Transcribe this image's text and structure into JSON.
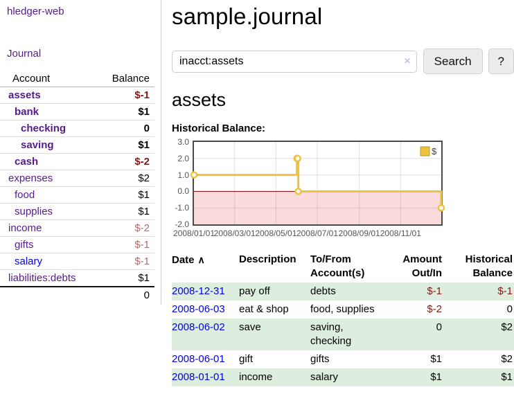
{
  "app": {
    "brand": "hledger-web",
    "nav_journal": "Journal"
  },
  "sidebar": {
    "table_headers": {
      "account": "Account",
      "balance": "Balance"
    },
    "accounts": [
      {
        "name": "assets",
        "indent": 1,
        "bold": true,
        "link_color": "purple",
        "balance": "$-1",
        "balance_style": "neg-strong"
      },
      {
        "name": "bank",
        "indent": 2,
        "bold": true,
        "link_color": "purple",
        "balance": "$1",
        "balance_style": "pos"
      },
      {
        "name": "checking",
        "indent": 3,
        "bold": true,
        "link_color": "purple",
        "balance": "0",
        "balance_style": "pos"
      },
      {
        "name": "saving",
        "indent": 3,
        "bold": true,
        "link_color": "purple",
        "balance": "$1",
        "balance_style": "pos"
      },
      {
        "name": "cash",
        "indent": 2,
        "bold": true,
        "link_color": "purple",
        "balance": "$-2",
        "balance_style": "neg-strong"
      },
      {
        "name": "expenses",
        "indent": 1,
        "bold": false,
        "link_color": "purple",
        "balance": "$2",
        "balance_style": "pos"
      },
      {
        "name": "food",
        "indent": 2,
        "bold": false,
        "link_color": "purple",
        "balance": "$1",
        "balance_style": "pos"
      },
      {
        "name": "supplies",
        "indent": 2,
        "bold": false,
        "link_color": "purple",
        "balance": "$1",
        "balance_style": "pos"
      },
      {
        "name": "income",
        "indent": 1,
        "bold": false,
        "link_color": "purple",
        "balance": "$-2",
        "balance_style": "neg-soft"
      },
      {
        "name": "gifts",
        "indent": 2,
        "bold": false,
        "link_color": "purple",
        "balance": "$-1",
        "balance_style": "neg-soft"
      },
      {
        "name": "salary",
        "indent": 2,
        "bold": false,
        "link_color": "blue",
        "balance": "$-1",
        "balance_style": "neg-soft"
      },
      {
        "name": "liabilities:debts",
        "indent": 1,
        "bold": false,
        "link_color": "purple",
        "balance": "$1",
        "balance_style": "pos"
      }
    ],
    "total": "0"
  },
  "header": {
    "title": "sample.journal"
  },
  "search": {
    "value": "inacct:assets",
    "clear_icon": "×",
    "button_label": "Search",
    "help_label": "?"
  },
  "account_page": {
    "heading": "assets",
    "chart_label": "Historical Balance:"
  },
  "chart_data": {
    "type": "line",
    "step": true,
    "title": "Historical Balance:",
    "series": [
      {
        "name": "$",
        "color": "#edc240",
        "points": [
          {
            "date": "2008-01-01",
            "day": 0,
            "value": 1
          },
          {
            "date": "2008-06-01",
            "day": 152,
            "value": 2
          },
          {
            "date": "2008-06-02",
            "day": 153,
            "value": 2
          },
          {
            "date": "2008-06-03",
            "day": 154,
            "value": 0
          },
          {
            "date": "2008-12-31",
            "day": 365,
            "value": -1
          }
        ]
      }
    ],
    "x_ticks": [
      {
        "label": "2008/01/01",
        "day": 0
      },
      {
        "label": "2008/03/01",
        "day": 60
      },
      {
        "label": "2008/05/01",
        "day": 121
      },
      {
        "label": "2008/07/01",
        "day": 182
      },
      {
        "label": "2008/09/01",
        "day": 244
      },
      {
        "label": "2008/11/01",
        "day": 305
      }
    ],
    "y_ticks": [
      "3.0",
      "2.0",
      "1.0",
      "0.0",
      "-1.0",
      "-2.0"
    ],
    "xlim_days": [
      0,
      365
    ],
    "ylim": [
      -2,
      3
    ],
    "grid": true,
    "legend_position": "top-right",
    "zero_line_color": "#8b0000",
    "negative_region_fill": "#fadada"
  },
  "register": {
    "headers": {
      "date": "Date",
      "sort_icon": "∧",
      "description": "Description",
      "tofrom": "To/From Account(s)",
      "amount": "Amount Out/In",
      "balance": "Historical Balance"
    },
    "rows": [
      {
        "date": "2008-12-31",
        "description": "pay off",
        "accounts": "debts",
        "amount": "$-1",
        "amount_neg": true,
        "balance": "$-1",
        "balance_neg": true
      },
      {
        "date": "2008-06-03",
        "description": "eat & shop",
        "accounts": "food, supplies",
        "amount": "$-2",
        "amount_neg": true,
        "balance": "0",
        "balance_neg": false
      },
      {
        "date": "2008-06-02",
        "description": "save",
        "accounts": "saving, checking",
        "amount": "0",
        "amount_neg": false,
        "balance": "$2",
        "balance_neg": false
      },
      {
        "date": "2008-06-01",
        "description": "gift",
        "accounts": "gifts",
        "amount": "$1",
        "amount_neg": false,
        "balance": "$2",
        "balance_neg": false
      },
      {
        "date": "2008-01-01",
        "description": "income",
        "accounts": "salary",
        "amount": "$1",
        "amount_neg": false,
        "balance": "$1",
        "balance_neg": false
      }
    ]
  },
  "colors": {
    "link_purple": "#551a8b",
    "link_blue": "#0000e6",
    "negative_strong": "#811818",
    "negative_soft": "#b16b6b",
    "row_green": "#deeede",
    "chart_line": "#edc240",
    "chart_zero": "#8b0000",
    "chart_neg_fill": "#fadada",
    "btn_bg": "#ececec"
  }
}
